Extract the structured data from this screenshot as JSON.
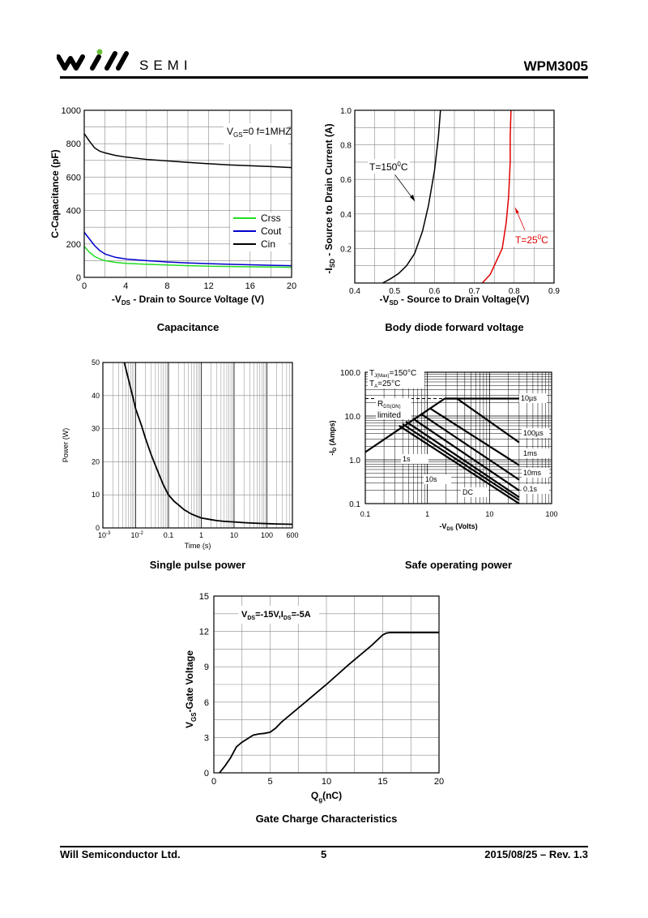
{
  "header": {
    "brand": "SEMI",
    "part_number": "WPM3005"
  },
  "footer": {
    "company": "Will Semiconductor Ltd.",
    "page": "5",
    "date_rev": "2015/08/25 – Rev. 1.3"
  },
  "colors": {
    "crss": "#22dd22",
    "cout": "#0000cc",
    "cin": "#000000",
    "t25": "#e00000",
    "grid": "#888888",
    "logo_dot": "#6bbf3b"
  },
  "captions": {
    "capacitance": "Capacitance",
    "body_diode": "Body diode forward voltage",
    "single_pulse": "Single pulse power",
    "soa": "Safe operating power",
    "gate_charge": "Gate Charge Characteristics"
  },
  "chart_data": [
    {
      "id": "capacitance",
      "type": "line",
      "xlabel_main": "-V",
      "xlabel_sub": "DS",
      "xlabel_rest": " - Drain to Source Voltage (V)",
      "ylabel": "C-Capacitance (pF)",
      "xlim": [
        0,
        20
      ],
      "ylim": [
        0,
        1000
      ],
      "xticks": [
        "0",
        "4",
        "8",
        "12",
        "16",
        "20"
      ],
      "yticks": [
        "0",
        "200",
        "400",
        "600",
        "800",
        "1000"
      ],
      "annotation_main": "V",
      "annotation_sub": "GS",
      "annotation_rest": "=0 f=1MHZ",
      "legend": "center-right",
      "series": [
        {
          "name": "Crss",
          "color": "#22dd22",
          "x": [
            0,
            0.5,
            1,
            1.5,
            2,
            3,
            4,
            6,
            8,
            10,
            12,
            14,
            16,
            18,
            20
          ],
          "y": [
            185,
            150,
            125,
            110,
            100,
            90,
            84,
            78,
            74,
            70,
            67,
            65,
            63,
            62,
            60
          ]
        },
        {
          "name": "Cout",
          "color": "#0000cc",
          "x": [
            0,
            0.5,
            1,
            1.5,
            2,
            3,
            4,
            6,
            8,
            10,
            12,
            14,
            16,
            18,
            20
          ],
          "y": [
            270,
            230,
            190,
            160,
            140,
            120,
            110,
            100,
            92,
            86,
            82,
            78,
            75,
            72,
            70
          ]
        },
        {
          "name": "Cin",
          "color": "#000000",
          "x": [
            0,
            0.5,
            1,
            1.5,
            2,
            3,
            4,
            6,
            8,
            10,
            12,
            14,
            16,
            18,
            20
          ],
          "y": [
            860,
            815,
            775,
            755,
            745,
            730,
            720,
            706,
            697,
            688,
            680,
            673,
            668,
            663,
            657
          ]
        }
      ]
    },
    {
      "id": "body_diode",
      "type": "line",
      "xlabel_main": "-V",
      "xlabel_sub": "SD",
      "xlabel_rest": " - Source to Drain Voltage(V)",
      "ylabel_main": "-I",
      "ylabel_sub": "SD",
      "ylabel_rest": " - Source to Drain Current (A)",
      "xlim": [
        0.4,
        0.9
      ],
      "ylim": [
        0,
        1.0
      ],
      "xticks": [
        "0.4",
        "0.5",
        "0.6",
        "0.7",
        "0.8",
        "0.9"
      ],
      "yticks": [
        "0.2",
        "0.4",
        "0.6",
        "0.8",
        "1.0"
      ],
      "series": [
        {
          "name": "T=150°C",
          "color": "#000000",
          "x": [
            0.47,
            0.49,
            0.51,
            0.53,
            0.55,
            0.57,
            0.585,
            0.6,
            0.61,
            0.615
          ],
          "y": [
            0,
            0.025,
            0.055,
            0.1,
            0.17,
            0.3,
            0.45,
            0.65,
            0.85,
            1.0
          ]
        },
        {
          "name": "T=25°C",
          "color": "#e00000",
          "x": [
            0.72,
            0.73,
            0.74,
            0.75,
            0.76,
            0.77,
            0.78,
            0.786,
            0.79,
            0.79,
            0.792
          ],
          "y": [
            0,
            0.025,
            0.05,
            0.1,
            0.15,
            0.2,
            0.35,
            0.5,
            0.7,
            0.85,
            1.0
          ]
        }
      ],
      "labels": {
        "t150_main": "T=150",
        "t150_sup": "0",
        "t150_rest": "C",
        "t25_main": "T=25",
        "t25_sup": "0",
        "t25_rest": "C"
      }
    },
    {
      "id": "single_pulse",
      "type": "line",
      "xlabel": "Time (s)",
      "ylabel": "Power  (W)",
      "xscale": "log",
      "xlim": [
        0.001,
        600
      ],
      "ylim": [
        0,
        50
      ],
      "xticks": [
        "10",
        "-3",
        "10",
        "-2",
        "0.1",
        "1",
        "10",
        "100",
        "600"
      ],
      "yticks": [
        "0",
        "10",
        "20",
        "30",
        "40",
        "50"
      ],
      "series": [
        {
          "name": "",
          "color": "#000000",
          "x": [
            0.0045,
            0.006,
            0.008,
            0.01,
            0.015,
            0.02,
            0.03,
            0.05,
            0.07,
            0.1,
            0.15,
            0.2,
            0.3,
            0.5,
            1,
            2,
            3,
            5,
            10,
            20,
            50,
            100,
            200,
            600
          ],
          "y": [
            50,
            45,
            40,
            36,
            31,
            27,
            22,
            16.5,
            13,
            10,
            8,
            7,
            5.5,
            4.2,
            3,
            2.5,
            2.2,
            2,
            1.8,
            1.6,
            1.4,
            1.3,
            1.2,
            1.1
          ]
        }
      ]
    },
    {
      "id": "soa",
      "type": "line",
      "xlabel_main": "-V",
      "xlabel_sub": "DS",
      "xlabel_rest": " (Volts)",
      "ylabel_main": "-I",
      "ylabel_sub": "D",
      "ylabel_rest": " (Amps)",
      "xscale": "log",
      "yscale": "log",
      "xlim": [
        0.1,
        100
      ],
      "ylim": [
        0.1,
        100
      ],
      "xticks": [
        "0.1",
        "1",
        "10",
        "100"
      ],
      "yticks": [
        "0.1",
        "1.0",
        "10.0",
        "100.0"
      ],
      "notes": {
        "tj_main": "T",
        "tj_sub": "J(Max)",
        "tj_rest": "=150°C",
        "ta_main": "T",
        "ta_sub": "A",
        "ta_rest": "=25°C",
        "rds_main": "R",
        "rds_sub": "DS(ON)",
        "rds_line2": "limited"
      },
      "curve_labels": [
        "10µs",
        "100µs",
        "1ms",
        "10ms",
        "0.1s",
        "1s",
        "10s",
        "DC"
      ],
      "series": [
        {
          "name": "R_DS(ON) limit",
          "x": [
            0.1,
            1.9
          ],
          "y": [
            1.5,
            25
          ]
        },
        {
          "name": "10µs",
          "x": [
            1.9,
            3,
            30
          ],
          "y": [
            25,
            25,
            25
          ]
        },
        {
          "name": "100µs",
          "x": [
            1.9,
            3,
            30
          ],
          "y": [
            25,
            25,
            2.5
          ]
        },
        {
          "name": "1ms",
          "x": [
            1.1,
            30
          ],
          "y": [
            15,
            0.75
          ]
        },
        {
          "name": "10ms",
          "x": [
            0.8,
            30
          ],
          "y": [
            11,
            0.35
          ]
        },
        {
          "name": "0.1s",
          "x": [
            0.6,
            30
          ],
          "y": [
            8.5,
            0.2
          ]
        },
        {
          "name": "1s",
          "x": [
            0.45,
            30
          ],
          "y": [
            7.5,
            0.14
          ]
        },
        {
          "name": "10s",
          "x": [
            0.4,
            30
          ],
          "y": [
            6.5,
            0.12
          ]
        },
        {
          "name": "DC",
          "x": [
            0.35,
            30
          ],
          "y": [
            6,
            0.1
          ]
        }
      ]
    },
    {
      "id": "gate_charge",
      "type": "line",
      "xlabel_main": "Q",
      "xlabel_sub": "g",
      "xlabel_rest": "(nC)",
      "ylabel_main": "V",
      "ylabel_sub": "GS",
      "ylabel_rest": "-Gate Voltage",
      "annotation": "V_DS=-15V,I_DS=-5A",
      "annotation_parts": [
        "V",
        "DS",
        "=-15V,I",
        "DS",
        "=-5A"
      ],
      "xlim": [
        0,
        20
      ],
      "ylim": [
        0,
        15
      ],
      "xticks": [
        "0",
        "5",
        "10",
        "15",
        "20"
      ],
      "yticks": [
        "0",
        "3",
        "6",
        "9",
        "12",
        "15"
      ],
      "series": [
        {
          "name": "",
          "color": "#000000",
          "x": [
            0.5,
            1,
            1.5,
            2,
            2.5,
            3,
            3.5,
            4,
            4.5,
            5,
            5.5,
            6,
            8,
            10,
            12,
            14,
            15,
            15.3,
            15.6,
            16,
            18,
            20
          ],
          "y": [
            0,
            0.6,
            1.3,
            2.2,
            2.6,
            2.9,
            3.2,
            3.3,
            3.35,
            3.45,
            3.8,
            4.3,
            5.9,
            7.5,
            9.2,
            10.8,
            11.7,
            11.85,
            11.9,
            11.9,
            11.9,
            11.9
          ]
        }
      ]
    }
  ]
}
